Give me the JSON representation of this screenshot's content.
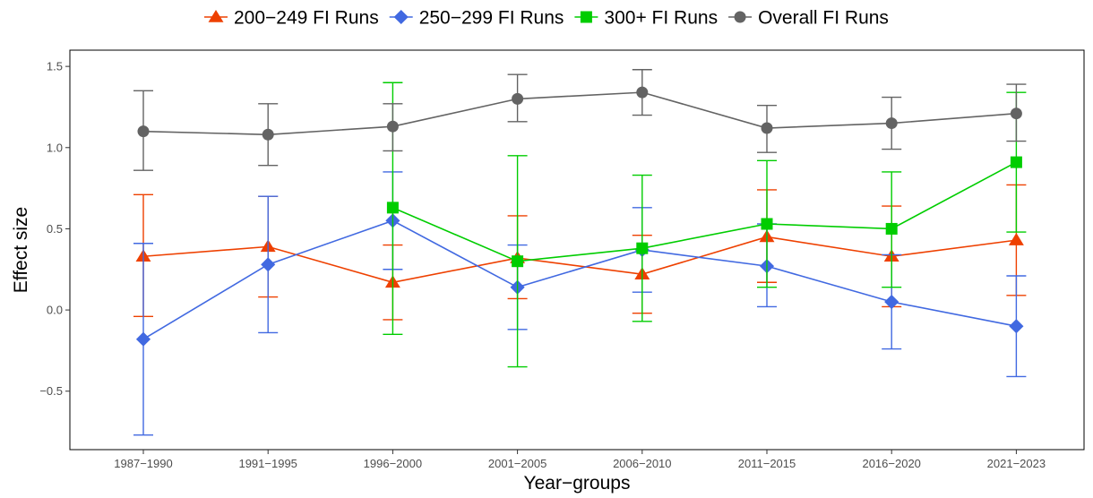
{
  "chart_data": {
    "type": "line",
    "xlabel": "Year−groups",
    "ylabel": "Effect size",
    "categories": [
      "1987−1990",
      "1991−1995",
      "1996−2000",
      "2001−2005",
      "2006−2010",
      "2011−2015",
      "2016−2020",
      "2021−2023"
    ],
    "ylim": [
      -0.86,
      1.6
    ],
    "yticks": [
      -0.5,
      0.0,
      0.5,
      1.0,
      1.5
    ],
    "ytick_labels": [
      "−0.5",
      "0.0",
      "0.5",
      "1.0",
      "1.5"
    ],
    "grid": false,
    "legend_position": "top",
    "series": [
      {
        "name": "200−249 FI Runs",
        "color": "#EE4000",
        "marker": "triangle",
        "values": [
          0.33,
          0.39,
          0.17,
          0.32,
          0.22,
          0.45,
          0.33,
          0.43
        ],
        "lower": [
          -0.04,
          0.08,
          -0.06,
          0.07,
          -0.02,
          0.17,
          0.02,
          0.09
        ],
        "upper": [
          0.71,
          0.7,
          0.4,
          0.58,
          0.46,
          0.74,
          0.64,
          0.77
        ]
      },
      {
        "name": "250−299 FI Runs",
        "color": "#4169E1",
        "marker": "diamond",
        "values": [
          -0.18,
          0.28,
          0.55,
          0.14,
          0.37,
          0.27,
          0.05,
          -0.1
        ],
        "lower": [
          -0.77,
          -0.14,
          0.25,
          -0.12,
          0.11,
          0.02,
          -0.24,
          -0.41
        ],
        "upper": [
          0.41,
          0.7,
          0.85,
          0.4,
          0.63,
          0.53,
          0.34,
          0.21
        ]
      },
      {
        "name": "300+ FI Runs",
        "color": "#00CD00",
        "marker": "square",
        "values": [
          null,
          null,
          0.63,
          0.3,
          0.38,
          0.53,
          0.5,
          0.91
        ],
        "lower": [
          null,
          null,
          -0.15,
          -0.35,
          -0.07,
          0.14,
          0.14,
          0.48
        ],
        "upper": [
          null,
          null,
          1.4,
          0.95,
          0.83,
          0.92,
          0.85,
          1.34
        ]
      },
      {
        "name": "Overall FI Runs",
        "color": "#636363",
        "marker": "circle",
        "values": [
          1.1,
          1.08,
          1.13,
          1.3,
          1.34,
          1.12,
          1.15,
          1.21
        ],
        "lower": [
          0.86,
          0.89,
          0.98,
          1.16,
          1.2,
          0.97,
          0.99,
          1.04
        ],
        "upper": [
          1.35,
          1.27,
          1.27,
          1.45,
          1.48,
          1.26,
          1.31,
          1.39
        ]
      }
    ]
  }
}
